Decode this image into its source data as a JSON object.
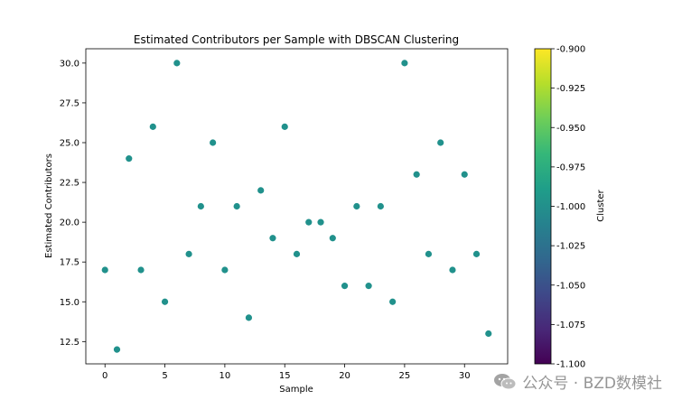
{
  "chart_data": {
    "type": "scatter",
    "title": "Estimated Contributors per Sample with DBSCAN Clustering",
    "xlabel": "Sample",
    "ylabel": "Estimated Contributors",
    "xlim": [
      -1.6,
      33.6
    ],
    "ylim": [
      11.1,
      30.9
    ],
    "xticks": [
      "0",
      "5",
      "10",
      "15",
      "20",
      "25",
      "30"
    ],
    "yticks": [
      "12.5",
      "15.0",
      "17.5",
      "20.0",
      "22.5",
      "25.0",
      "27.5",
      "30.0"
    ],
    "x": [
      0,
      1,
      2,
      3,
      4,
      5,
      6,
      7,
      8,
      9,
      10,
      11,
      12,
      13,
      14,
      15,
      16,
      17,
      18,
      19,
      20,
      21,
      22,
      23,
      24,
      25,
      26,
      27,
      28,
      29,
      30,
      31,
      32
    ],
    "y": [
      17,
      12,
      24,
      17,
      26,
      15,
      30,
      18,
      21,
      25,
      17,
      21,
      14,
      22,
      19,
      26,
      18,
      20,
      20,
      19,
      16,
      21,
      16,
      21,
      15,
      30,
      23,
      18,
      25,
      17,
      23,
      18,
      13
    ],
    "cluster": -1,
    "point_color": "#21918c",
    "grid": false,
    "colorbar": {
      "label": "Cluster",
      "range": [
        -1.1,
        -0.9
      ],
      "ticks": [
        "-0.900",
        "-0.925",
        "-0.950",
        "-0.975",
        "-1.000",
        "-1.025",
        "-1.050",
        "-1.075",
        "-1.100"
      ],
      "colormap": "viridis",
      "colors": [
        "#440154",
        "#482878",
        "#3e4989",
        "#31688e",
        "#26828e",
        "#1f9e89",
        "#35b779",
        "#6ece58",
        "#b5de2b",
        "#fde725"
      ]
    }
  },
  "watermark": {
    "text": "公众号 · BZD数模社",
    "icon": "wechat-icon"
  }
}
